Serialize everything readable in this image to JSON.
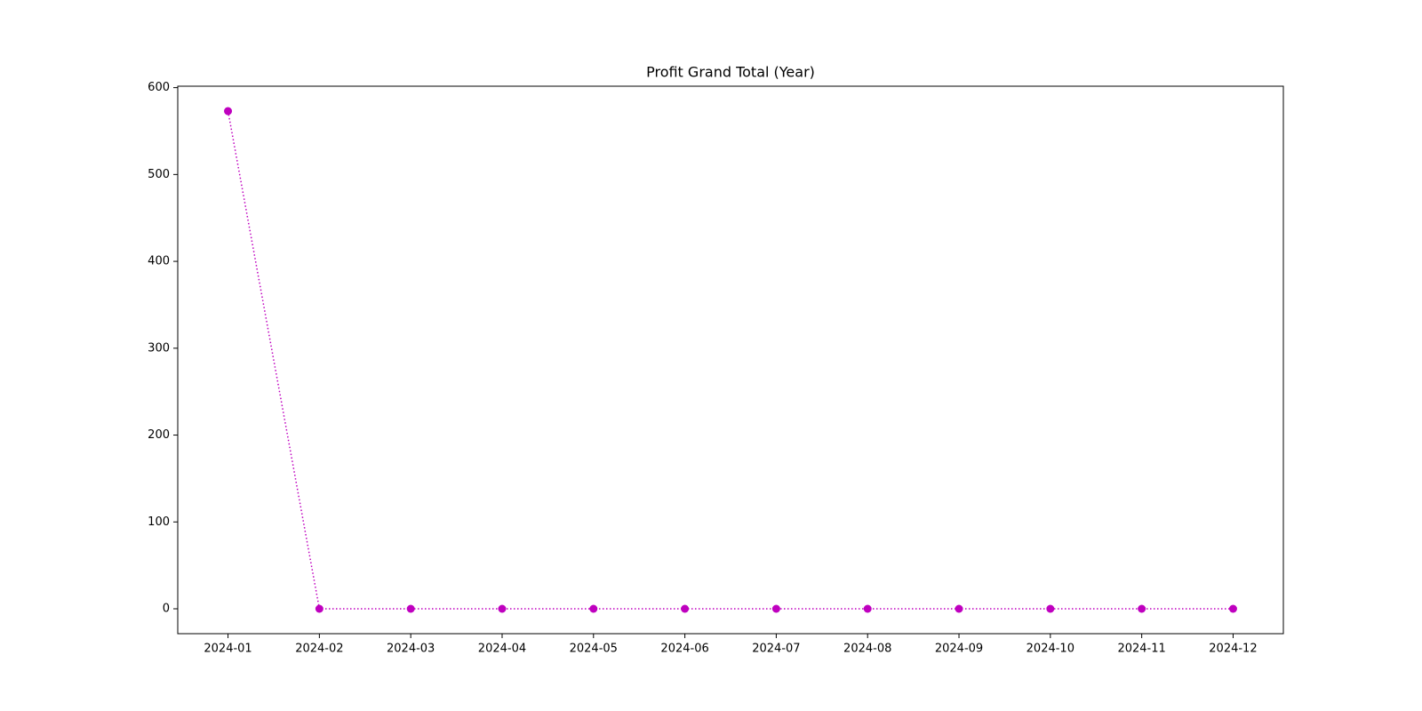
{
  "chart_data": {
    "type": "line",
    "title": "Profit Grand Total (Year)",
    "categories": [
      "2024-01",
      "2024-02",
      "2024-03",
      "2024-04",
      "2024-05",
      "2024-06",
      "2024-07",
      "2024-08",
      "2024-09",
      "2024-10",
      "2024-11",
      "2024-12"
    ],
    "values": [
      573,
      0,
      0,
      0,
      0,
      0,
      0,
      0,
      0,
      0,
      0,
      0
    ],
    "color": "#bf00bf",
    "linestyle": "dotted",
    "marker": "circle",
    "ylim": [
      -28.65,
      601.65
    ],
    "yticks": [
      0,
      100,
      200,
      300,
      400,
      500,
      600
    ],
    "grid": false
  }
}
